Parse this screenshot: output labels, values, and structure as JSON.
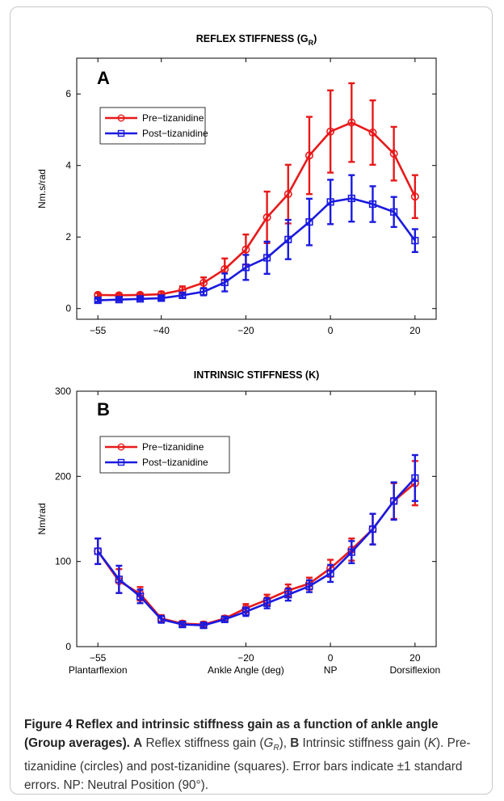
{
  "caption": {
    "figure_label": "Figure 4",
    "title": "Reflex and intrinsic stiffness gain as a function of ankle angle (Group averages)",
    "a_label": "A",
    "a_text": " Reflex stiffness gain (",
    "a_sym": "G",
    "a_sub": "R",
    "a_close": "), ",
    "b_label": "B",
    "b_text": " Intrinsic stiffness gain (",
    "b_sym": "K",
    "b_close": "). Pre-tizanidine (circles) and post-tizanidine (squares). Error bars indicate ±1 standard errors. NP: Neutral Position (90°)."
  },
  "colors": {
    "pre": "#e8191a",
    "post": "#1a1ae0"
  },
  "chart_data": [
    {
      "type": "line",
      "panel_letter": "A",
      "title": "REFLEX STIFFNESS (G",
      "title_sub": "R",
      "title_close": ")",
      "xlabel": "",
      "ylabel": "Nm.s/rad",
      "xlim": [
        -60,
        25
      ],
      "ylim": [
        -0.3,
        7
      ],
      "xticks": [
        -55,
        -40,
        -20,
        0,
        20
      ],
      "yticks": [
        0,
        2,
        4,
        6
      ],
      "legend_position": "top-left",
      "x": [
        -55,
        -50,
        -45,
        -40,
        -35,
        -30,
        -25,
        -20,
        -15,
        -10,
        -5,
        0,
        5,
        10,
        15,
        20
      ],
      "series": [
        {
          "name": "Pre−tizanidine",
          "marker": "circle",
          "values": [
            0.38,
            0.37,
            0.38,
            0.4,
            0.52,
            0.72,
            1.1,
            1.65,
            2.55,
            3.2,
            4.28,
            4.95,
            5.2,
            4.92,
            4.33,
            3.13
          ],
          "errors": [
            0.05,
            0.05,
            0.05,
            0.07,
            0.1,
            0.15,
            0.3,
            0.42,
            0.72,
            0.82,
            1.08,
            1.15,
            1.1,
            0.9,
            0.75,
            0.6
          ]
        },
        {
          "name": "Post−tizanidine",
          "marker": "square",
          "values": [
            0.23,
            0.25,
            0.27,
            0.29,
            0.37,
            0.47,
            0.73,
            1.15,
            1.42,
            1.93,
            2.42,
            2.98,
            3.08,
            2.92,
            2.7,
            1.9
          ],
          "errors": [
            0.04,
            0.04,
            0.04,
            0.05,
            0.07,
            0.1,
            0.25,
            0.35,
            0.45,
            0.55,
            0.65,
            0.62,
            0.65,
            0.5,
            0.42,
            0.32
          ]
        }
      ]
    },
    {
      "type": "line",
      "panel_letter": "B",
      "title": "INTRINSIC STIFFNESS (K)",
      "xlabel": "Ankle Angle (deg)",
      "x_side_labels": {
        "left": "Plantarflexion",
        "np": "NP",
        "right": "Dorsiflexion"
      },
      "ylabel": "Nm/rad",
      "xlim": [
        -60,
        25
      ],
      "ylim": [
        0,
        300
      ],
      "xticks": [
        -55,
        -20,
        0,
        20
      ],
      "yticks": [
        0,
        100,
        200,
        300
      ],
      "legend_position": "top-left",
      "x": [
        -55,
        -50,
        -45,
        -40,
        -35,
        -30,
        -25,
        -20,
        -15,
        -10,
        -5,
        0,
        5,
        10,
        15,
        20
      ],
      "series": [
        {
          "name": "Pre−tizanidine",
          "marker": "circle",
          "values": [
            112,
            77,
            62,
            33,
            27,
            26,
            33,
            45,
            55,
            66,
            74,
            92,
            114,
            138,
            171,
            192
          ],
          "errors": [
            15,
            14,
            8,
            4,
            3,
            3,
            3,
            5,
            6,
            7,
            7,
            10,
            13,
            18,
            21,
            26
          ]
        },
        {
          "name": "Post−tizanidine",
          "marker": "square",
          "values": [
            112,
            79,
            59,
            32,
            26,
            25,
            32,
            41,
            51,
            61,
            71,
            86,
            111,
            138,
            171,
            198
          ],
          "errors": [
            15,
            16,
            8,
            4,
            3,
            3,
            3,
            5,
            6,
            7,
            7,
            10,
            13,
            18,
            22,
            27
          ]
        }
      ]
    }
  ]
}
